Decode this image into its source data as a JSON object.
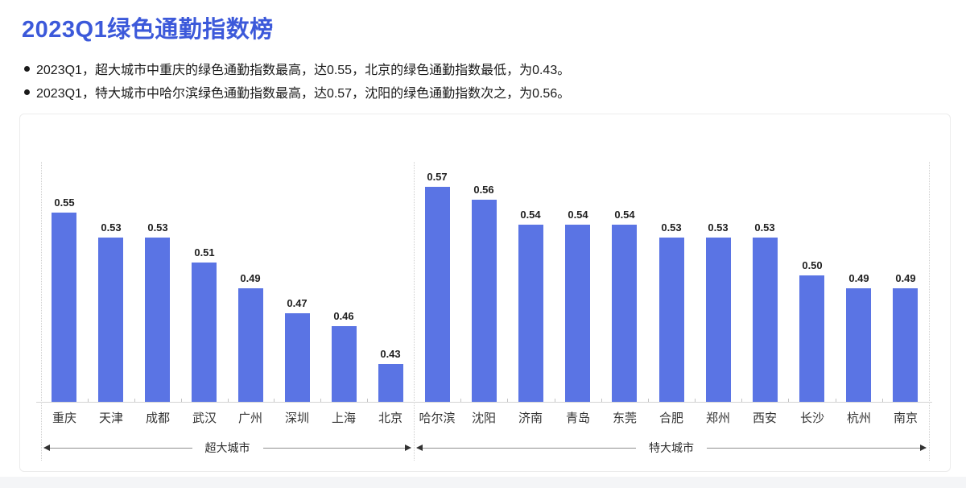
{
  "title": "2023Q1绿色通勤指数榜",
  "bullets": [
    {
      "text": "2023Q1，超大城市中重庆的绿色通勤指数最高，达0.55，北京的绿色通勤指数最低，为0.43。"
    },
    {
      "text": "2023Q1，特大城市中哈尔滨绿色通勤指数最高，达0.57，沈阳的绿色通勤指数次之，为0.56。"
    }
  ],
  "colors": {
    "title_blue": "#3c59da",
    "bar_blue": "#5a74e4",
    "axis_line": "#d4d4d4",
    "dotted_line": "#cfcfcf",
    "value_label": "#1f1f1f",
    "city_label": "#333333",
    "bracket_line": "#8f8f8f",
    "bracket_text": "#2e2e2e"
  },
  "chart_data": {
    "type": "bar",
    "title": "2023Q1绿色通勤指数榜",
    "xlabel": "",
    "ylabel": "绿色通勤指数",
    "ylim": [
      0.4,
      0.59
    ],
    "grid": false,
    "legend": "none",
    "value_labels": true,
    "groups": [
      {
        "name": "超大城市",
        "categories": [
          "重庆",
          "天津",
          "成都",
          "武汉",
          "广州",
          "深圳",
          "上海",
          "北京"
        ],
        "values": [
          0.55,
          0.53,
          0.53,
          0.51,
          0.49,
          0.47,
          0.46,
          0.43
        ]
      },
      {
        "name": "特大城市",
        "categories": [
          "哈尔滨",
          "沈阳",
          "济南",
          "青岛",
          "东莞",
          "合肥",
          "郑州",
          "西安",
          "长沙",
          "杭州",
          "南京"
        ],
        "values": [
          0.57,
          0.56,
          0.54,
          0.54,
          0.54,
          0.53,
          0.53,
          0.53,
          0.5,
          0.49,
          0.49
        ]
      }
    ]
  }
}
